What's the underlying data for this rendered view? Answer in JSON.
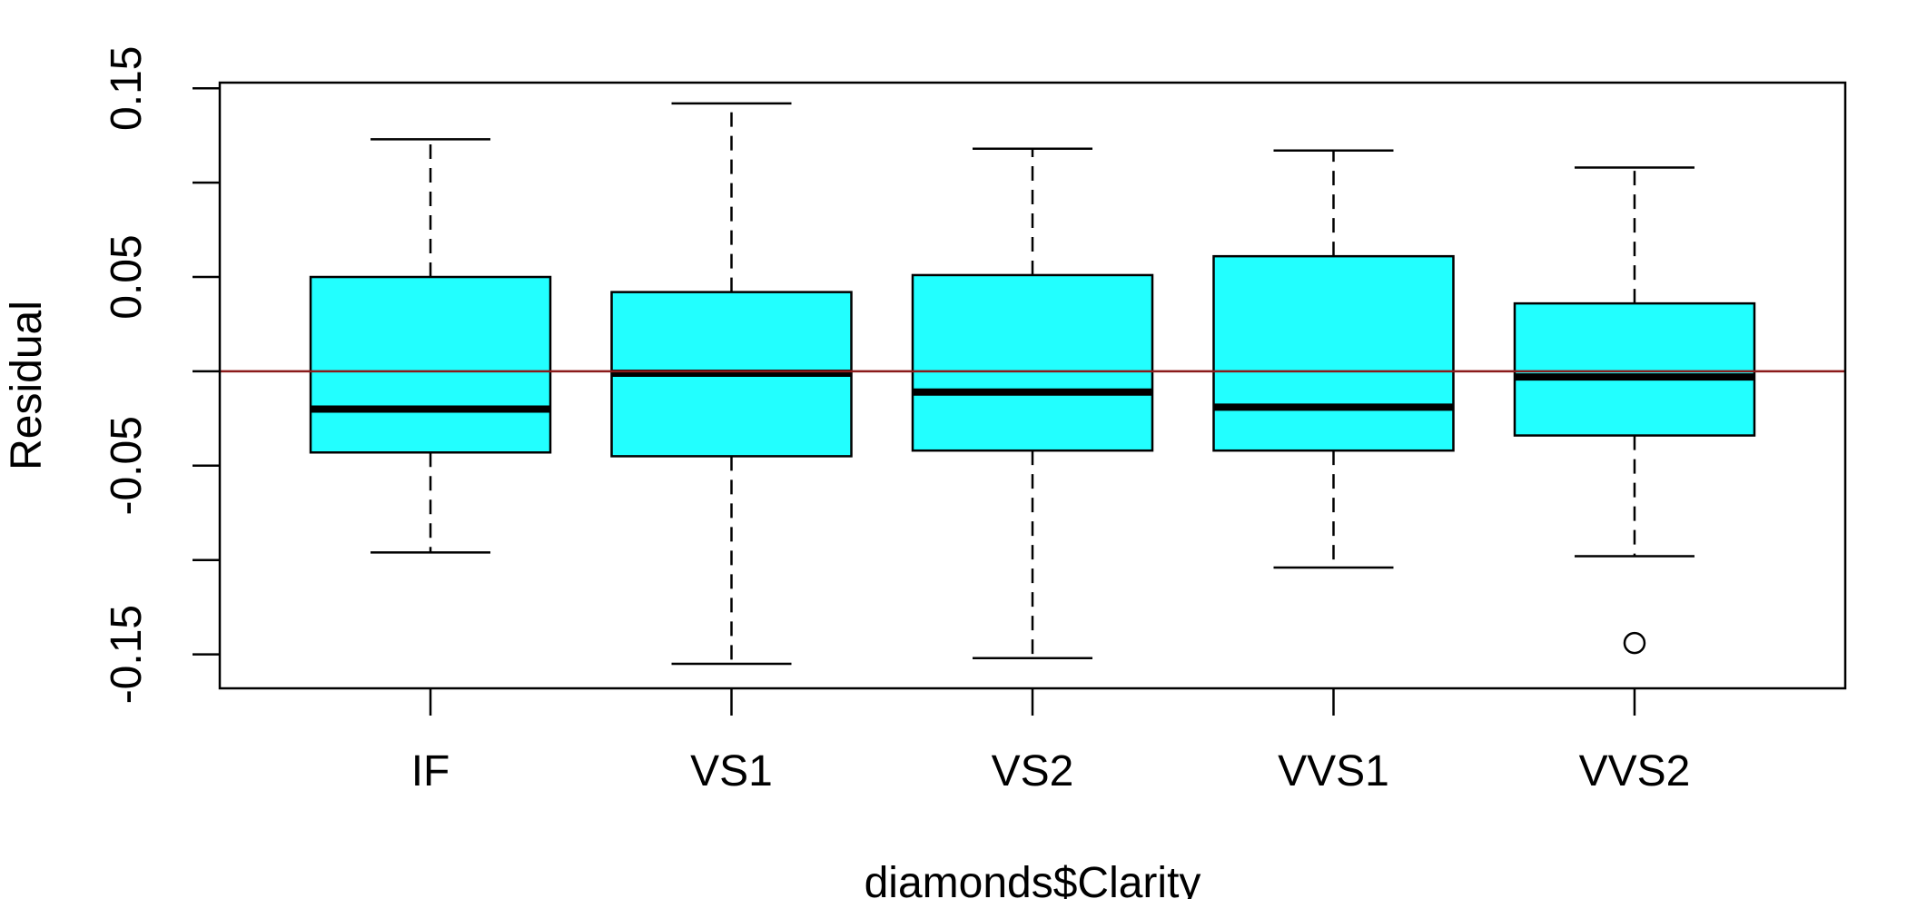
{
  "chart_data": {
    "type": "boxplot",
    "title": "",
    "xlabel": "diamonds$Clarity",
    "ylabel": "Residual",
    "categories": [
      "IF",
      "VS1",
      "VS2",
      "VVS1",
      "VVS2"
    ],
    "ylim": [
      -0.168,
      0.153
    ],
    "y_ticks": [
      {
        "value": 0.15,
        "label": "0.15"
      },
      {
        "value": 0.1,
        "label": ""
      },
      {
        "value": 0.05,
        "label": "0.05"
      },
      {
        "value": 0.0,
        "label": ""
      },
      {
        "value": -0.05,
        "label": "-0.05"
      },
      {
        "value": -0.1,
        "label": ""
      },
      {
        "value": -0.15,
        "label": "-0.15"
      }
    ],
    "boxes": [
      {
        "category": "IF",
        "whisker_low": -0.096,
        "q1": -0.043,
        "median": -0.02,
        "q3": 0.05,
        "whisker_high": 0.123,
        "outliers": []
      },
      {
        "category": "VS1",
        "whisker_low": -0.155,
        "q1": -0.045,
        "median": -0.001,
        "q3": 0.042,
        "whisker_high": 0.142,
        "outliers": []
      },
      {
        "category": "VS2",
        "whisker_low": -0.152,
        "q1": -0.042,
        "median": -0.011,
        "q3": 0.051,
        "whisker_high": 0.118,
        "outliers": []
      },
      {
        "category": "VVS1",
        "whisker_low": -0.104,
        "q1": -0.042,
        "median": -0.019,
        "q3": 0.061,
        "whisker_high": 0.117,
        "outliers": []
      },
      {
        "category": "VVS2",
        "whisker_low": -0.098,
        "q1": -0.034,
        "median": -0.003,
        "q3": 0.036,
        "whisker_high": 0.108,
        "outliers": [
          -0.144
        ]
      }
    ],
    "reference_line": {
      "y": 0.0,
      "color": "#8b1a1a"
    },
    "box_fill": "#22ffff",
    "grid": false,
    "legend": "none"
  }
}
